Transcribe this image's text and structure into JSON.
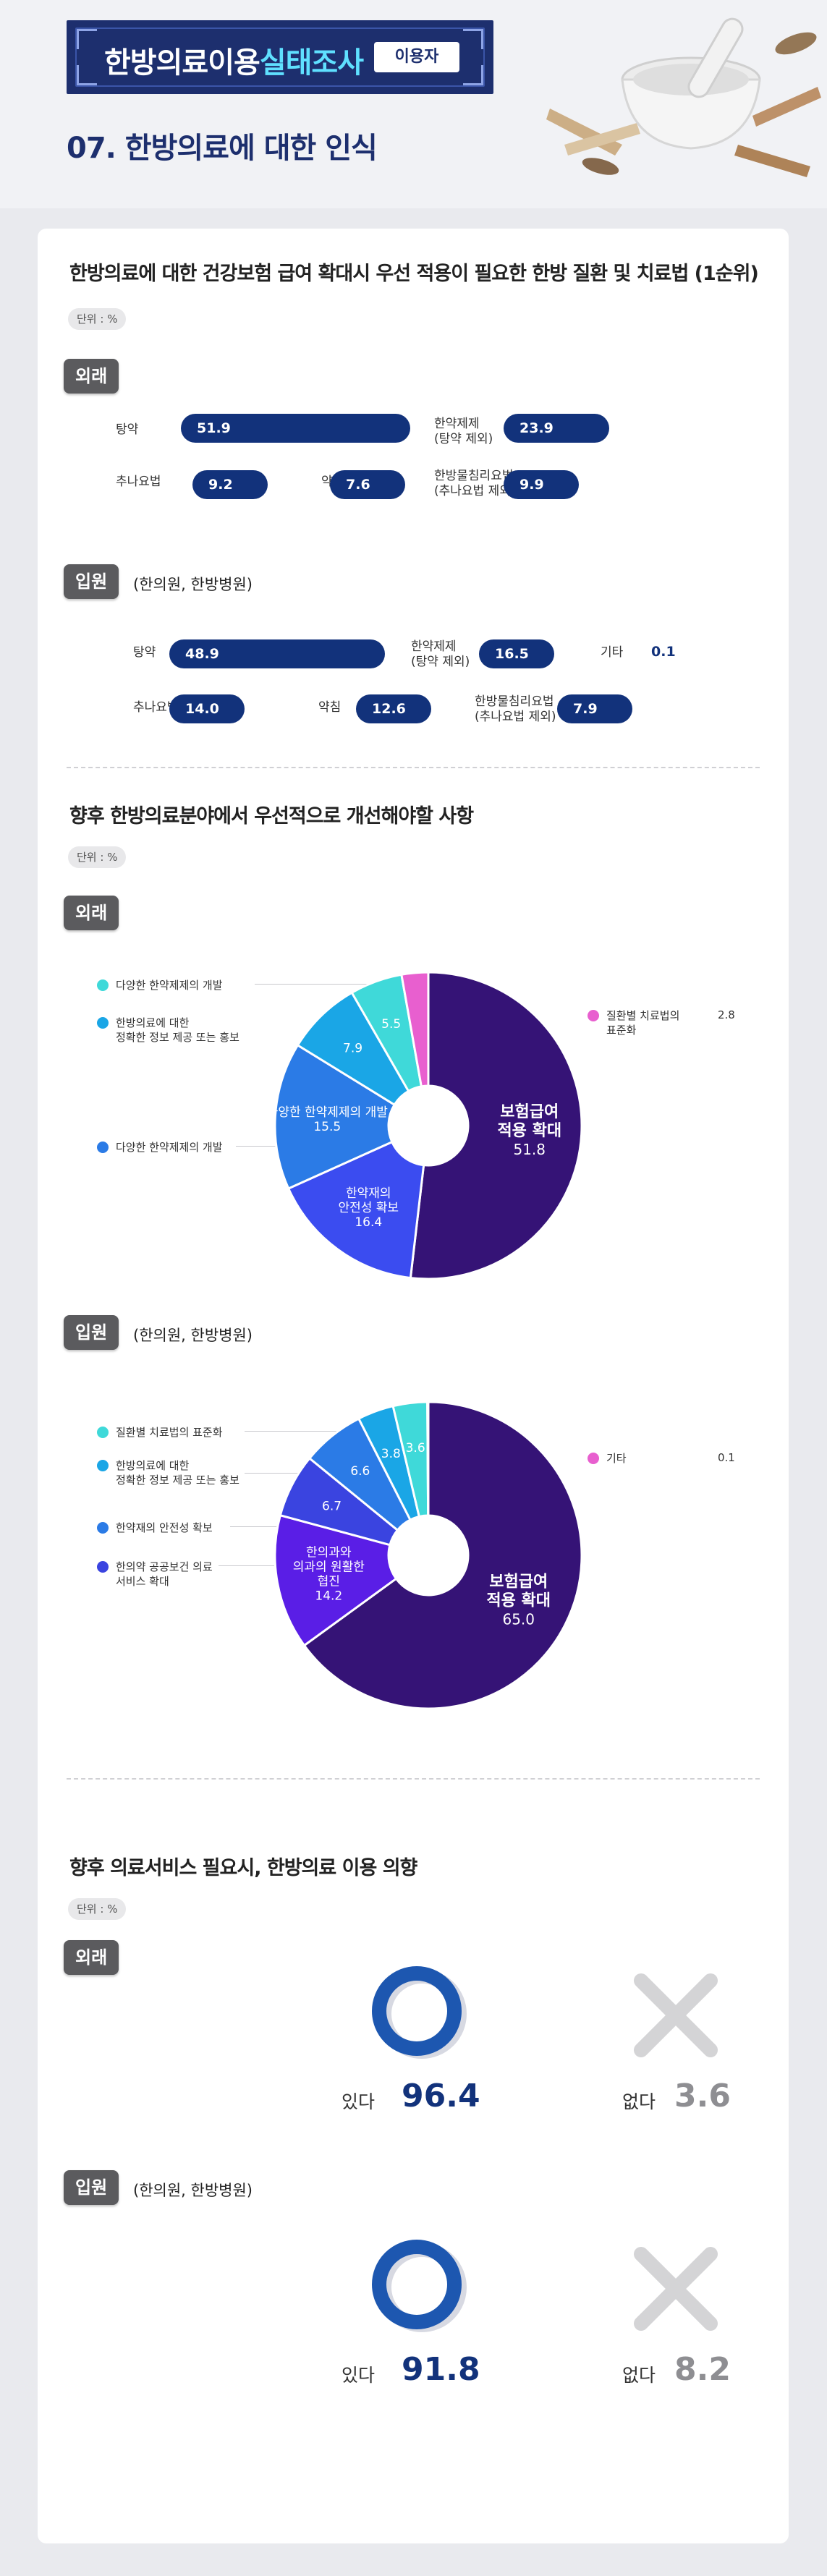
{
  "header": {
    "title_main": "한방의료이용",
    "title_highlight": "실태조사",
    "badge": "이용자",
    "section": "07. 한방의료에 대한 인식"
  },
  "q1": {
    "title": "한방의료에 대한 건강보험 급여 확대시 우선 적용이 필요한 한방 질환 및 치료법 (1순위)",
    "unit": "단위 : %",
    "outpatient": {
      "tag": "외래",
      "items": [
        {
          "label": "탕약",
          "value": 51.9
        },
        {
          "label": "한약제제\n(탕약 제외)",
          "value": 23.9
        },
        {
          "label": "추나요법",
          "value": 9.2
        },
        {
          "label": "약침",
          "value": 7.6
        },
        {
          "label": "한방물침리요법\n(추나요법 제외)",
          "value": 9.9
        }
      ]
    },
    "inpatient": {
      "tag": "입원",
      "note": "(한의원, 한방병원)",
      "items": [
        {
          "label": "탕약",
          "value": 48.9
        },
        {
          "label": "한약제제\n(탕약 제외)",
          "value": 16.5
        },
        {
          "label": "기타",
          "value": 0.1
        },
        {
          "label": "추나요법",
          "value": 14.0
        },
        {
          "label": "약침",
          "value": 12.6
        },
        {
          "label": "한방물침리요법\n(추나요법 제외)",
          "value": 7.9
        }
      ]
    }
  },
  "q2": {
    "title": "향후 한방의료분야에서 우선적으로 개선해야할 사항",
    "unit": "단위 : %",
    "outpatient": {
      "tag": "외래",
      "legend": [
        {
          "label": "다양한 한약제제의 개발",
          "color": "#3fd9d9"
        },
        {
          "label": "한방의료에 대한\n정확한 정보 제공 또는 홍보",
          "color": "#1aa6e6"
        },
        {
          "label": "다양한 한약제제의 개발",
          "color": "#2b7be6"
        },
        {
          "label": "질환별 치료법의\n표준화",
          "color": "#e85fcf",
          "value": "2.8"
        }
      ]
    },
    "inpatient": {
      "tag": "입원",
      "note": "(한의원, 한방병원)",
      "legend": [
        {
          "label": "질환별 치료법의 표준화",
          "color": "#3fd9d9"
        },
        {
          "label": "한방의료에 대한\n정확한 정보 제공 또는 홍보",
          "color": "#1aa6e6"
        },
        {
          "label": "한약재의 안전성 확보",
          "color": "#2b7be6"
        },
        {
          "label": "한의약 공공보건 의료\n서비스 확대",
          "color": "#3a44e0"
        },
        {
          "label": "기타",
          "color": "#e85fcf",
          "value": "0.1"
        }
      ]
    }
  },
  "q3": {
    "title": "향후 의료서비스 필요시, 한방의료 이용 의향",
    "unit": "단위 : %",
    "outpatient": {
      "tag": "외래",
      "yes_label": "있다",
      "yes": "96.4",
      "no_label": "없다",
      "no": "3.6"
    },
    "inpatient": {
      "tag": "입원",
      "note": "(한의원, 한방병원)",
      "yes_label": "있다",
      "yes": "91.8",
      "no_label": "없다",
      "no": "8.2"
    }
  },
  "colors": {
    "navy": "#12327b",
    "accent": "#5fe0ff",
    "no_gray": "#8e8e92"
  },
  "chart_data": [
    {
      "type": "pie",
      "title": "향후 한방의료분야에서 우선적으로 개선해야할 사항 - 외래",
      "series": [
        {
          "name": "보험급여 적용 확대",
          "value": 51.8,
          "color": "#351376"
        },
        {
          "name": "한약재의 안전성 확보",
          "value": 16.4,
          "color": "#3b4cf0"
        },
        {
          "name": "다양한 한약제제의 개발",
          "value": 15.5,
          "color": "#2b7be6"
        },
        {
          "name": "한방의료에 대한 정확한 정보 제공 또는 홍보",
          "value": 7.9,
          "color": "#1aa6e6"
        },
        {
          "name": "다양한 한약제제의 개발",
          "value": 5.5,
          "color": "#3fd9d9"
        },
        {
          "name": "질환별 치료법의 표준화",
          "value": 2.8,
          "color": "#e85fcf"
        }
      ]
    },
    {
      "type": "pie",
      "title": "향후 한방의료분야에서 우선적으로 개선해야할 사항 - 입원",
      "series": [
        {
          "name": "보험급여 적용 확대",
          "value": 65.0,
          "color": "#351376"
        },
        {
          "name": "한의과와 의과의 원활한 협진",
          "value": 14.2,
          "color": "#5a1ee6"
        },
        {
          "name": "한의약 공공보건 의료 서비스 확대",
          "value": 6.7,
          "color": "#3a44e0"
        },
        {
          "name": "한약재의 안전성 확보",
          "value": 6.6,
          "color": "#2b7be6"
        },
        {
          "name": "한방의료에 대한 정확한 정보 제공 또는 홍보",
          "value": 3.8,
          "color": "#1aa6e6"
        },
        {
          "name": "질환별 치료법의 표준화",
          "value": 3.6,
          "color": "#3fd9d9"
        },
        {
          "name": "기타",
          "value": 0.1,
          "color": "#e85fcf"
        }
      ]
    }
  ]
}
